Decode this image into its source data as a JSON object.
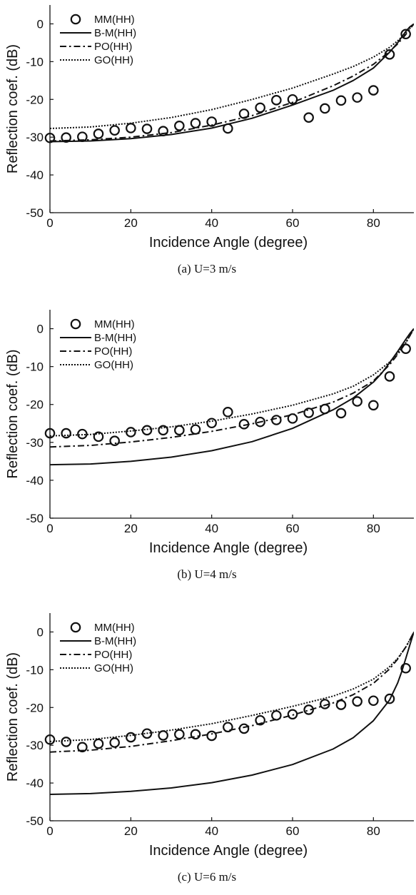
{
  "figure": {
    "panels": [
      {
        "caption": "(a)  U=3  m/s"
      },
      {
        "caption": "(b)  U=4  m/s"
      },
      {
        "caption": "(c)  U=6  m/s"
      }
    ]
  },
  "chart_data": [
    {
      "type": "line",
      "caption": "(a)  U=3  m/s",
      "xlabel": "Incidence Angle (degree)",
      "ylabel": "Reflection coef. (dB)",
      "xlim": [
        0,
        90
      ],
      "ylim": [
        -50,
        5
      ],
      "xticks": [
        0,
        20,
        40,
        60,
        80
      ],
      "yticks": [
        0,
        -10,
        -20,
        -30,
        -40,
        -50
      ],
      "grid": false,
      "legend_position": "top-left",
      "series": [
        {
          "name": "MM(HH)",
          "style": "markers-circle",
          "x": [
            0,
            4,
            8,
            12,
            16,
            20,
            24,
            28,
            32,
            36,
            40,
            44,
            48,
            52,
            56,
            60,
            64,
            68,
            72,
            76,
            80,
            84,
            88
          ],
          "y": [
            -30.2,
            -30.1,
            -29.9,
            -29.1,
            -28.2,
            -27.6,
            -27.8,
            -28.4,
            -27.0,
            -26.3,
            -25.9,
            -27.7,
            -23.8,
            -22.2,
            -20.2,
            -20.0,
            -24.8,
            -22.4,
            -20.3,
            -19.5,
            -17.6,
            -8.1,
            -2.7
          ]
        },
        {
          "name": "B-M(HH)",
          "style": "solid",
          "x": [
            0,
            10,
            20,
            30,
            40,
            50,
            60,
            70,
            75,
            80,
            84,
            86,
            88,
            89,
            90
          ],
          "y": [
            -31.2,
            -31.0,
            -30.4,
            -29.3,
            -27.6,
            -25.0,
            -21.5,
            -17.6,
            -15.0,
            -11.7,
            -7.5,
            -5.0,
            -2.0,
            -0.8,
            0
          ]
        },
        {
          "name": "PO(HH)",
          "style": "dash-dot",
          "x": [
            0,
            10,
            20,
            30,
            40,
            50,
            60,
            70,
            75,
            80,
            84,
            86,
            88,
            89,
            90
          ],
          "y": [
            -31.0,
            -30.7,
            -30.0,
            -28.8,
            -26.8,
            -24.3,
            -20.8,
            -16.4,
            -13.8,
            -10.7,
            -7.3,
            -5.3,
            -2.8,
            -1.4,
            0
          ]
        },
        {
          "name": "GO(HH)",
          "style": "dotted",
          "x": [
            0,
            10,
            20,
            30,
            40,
            50,
            60,
            70,
            75,
            80,
            84,
            86,
            88,
            89,
            90
          ],
          "y": [
            -27.7,
            -27.3,
            -26.3,
            -24.8,
            -22.7,
            -20.0,
            -17.0,
            -13.3,
            -11.3,
            -8.8,
            -6.2,
            -4.5,
            -2.4,
            -1.2,
            0
          ]
        }
      ]
    },
    {
      "type": "line",
      "caption": "(b)  U=4  m/s",
      "xlabel": "Incidence Angle (degree)",
      "ylabel": "Reflection coef. (dB)",
      "xlim": [
        0,
        90
      ],
      "ylim": [
        -50,
        5
      ],
      "xticks": [
        0,
        20,
        40,
        60,
        80
      ],
      "yticks": [
        0,
        -10,
        -20,
        -30,
        -40,
        -50
      ],
      "grid": false,
      "legend_position": "top-left",
      "series": [
        {
          "name": "MM(HH)",
          "style": "markers-circle",
          "x": [
            0,
            4,
            8,
            12,
            16,
            20,
            24,
            28,
            32,
            36,
            40,
            44,
            48,
            52,
            56,
            60,
            64,
            68,
            72,
            76,
            80,
            84,
            88
          ],
          "y": [
            -27.6,
            -27.6,
            -27.8,
            -28.5,
            -29.6,
            -27.3,
            -26.8,
            -26.8,
            -26.8,
            -26.6,
            -24.9,
            -22.0,
            -25.2,
            -24.6,
            -24.1,
            -23.7,
            -22.2,
            -21.2,
            -22.3,
            -19.2,
            -20.2,
            -12.6,
            -5.3
          ]
        },
        {
          "name": "B-M(HH)",
          "style": "solid",
          "x": [
            0,
            10,
            20,
            30,
            40,
            50,
            60,
            70,
            75,
            80,
            82,
            84,
            86,
            88,
            89,
            90
          ],
          "y": [
            -35.9,
            -35.7,
            -35.0,
            -33.9,
            -32.2,
            -29.8,
            -26.3,
            -21.4,
            -18.3,
            -14.1,
            -11.8,
            -9.0,
            -6.0,
            -2.8,
            -1.3,
            0
          ]
        },
        {
          "name": "PO(HH)",
          "style": "dash-dot",
          "x": [
            0,
            10,
            20,
            30,
            40,
            50,
            60,
            70,
            75,
            80,
            84,
            86,
            88,
            89,
            90
          ],
          "y": [
            -31.2,
            -30.8,
            -29.9,
            -28.7,
            -27.1,
            -25.1,
            -22.7,
            -19.4,
            -17.0,
            -13.8,
            -9.5,
            -6.8,
            -3.7,
            -1.9,
            0
          ]
        },
        {
          "name": "GO(HH)",
          "style": "dotted",
          "x": [
            0,
            10,
            20,
            30,
            40,
            50,
            60,
            70,
            75,
            80,
            84,
            86,
            88,
            89,
            90
          ],
          "y": [
            -28.3,
            -27.9,
            -27.0,
            -25.9,
            -24.4,
            -22.5,
            -20.2,
            -17.2,
            -15.2,
            -12.2,
            -8.8,
            -6.5,
            -3.7,
            -1.9,
            0
          ]
        }
      ]
    },
    {
      "type": "line",
      "caption": "(c)  U=6  m/s",
      "xlabel": "Incidence Angle (degree)",
      "ylabel": "Reflection coef. (dB)",
      "xlim": [
        0,
        90
      ],
      "ylim": [
        -50,
        5
      ],
      "xticks": [
        0,
        20,
        40,
        60,
        80
      ],
      "yticks": [
        0,
        -10,
        -20,
        -30,
        -40,
        -50
      ],
      "grid": false,
      "legend_position": "top-left",
      "series": [
        {
          "name": "MM(HH)",
          "style": "markers-circle",
          "x": [
            0,
            4,
            8,
            12,
            16,
            20,
            24,
            28,
            32,
            36,
            40,
            44,
            48,
            52,
            56,
            60,
            64,
            68,
            72,
            76,
            80,
            84,
            88
          ],
          "y": [
            -28.5,
            -29.1,
            -30.5,
            -29.6,
            -29.3,
            -27.9,
            -26.9,
            -27.4,
            -27.1,
            -27.1,
            -27.5,
            -25.2,
            -25.6,
            -23.4,
            -22.1,
            -21.8,
            -20.6,
            -19.1,
            -19.3,
            -18.4,
            -18.2,
            -17.7,
            -9.6
          ]
        },
        {
          "name": "B-M(HH)",
          "style": "solid",
          "x": [
            0,
            10,
            20,
            30,
            40,
            50,
            60,
            70,
            75,
            80,
            84,
            86,
            87,
            88,
            89,
            90
          ],
          "y": [
            -43.0,
            -42.8,
            -42.2,
            -41.3,
            -39.9,
            -37.9,
            -35.1,
            -31.0,
            -28.0,
            -23.5,
            -18.0,
            -13.5,
            -10.5,
            -7.0,
            -3.5,
            0
          ]
        },
        {
          "name": "PO(HH)",
          "style": "dash-dot",
          "x": [
            0,
            10,
            20,
            30,
            40,
            50,
            60,
            70,
            75,
            80,
            84,
            86,
            88,
            89,
            90
          ],
          "y": [
            -31.8,
            -31.3,
            -30.3,
            -28.8,
            -27.0,
            -24.8,
            -22.0,
            -18.8,
            -16.6,
            -13.6,
            -9.8,
            -7.2,
            -4.0,
            -2.1,
            0
          ]
        },
        {
          "name": "GO(HH)",
          "style": "dotted",
          "x": [
            0,
            10,
            20,
            30,
            40,
            50,
            60,
            70,
            75,
            80,
            84,
            86,
            88,
            89,
            90
          ],
          "y": [
            -29.0,
            -28.5,
            -27.4,
            -26.0,
            -24.3,
            -22.1,
            -19.7,
            -17.0,
            -15.1,
            -12.5,
            -9.2,
            -7.0,
            -4.0,
            -2.1,
            0
          ]
        }
      ]
    }
  ]
}
